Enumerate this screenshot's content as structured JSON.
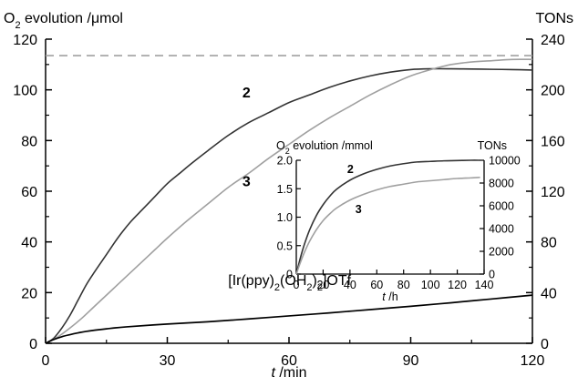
{
  "chart_data": [
    {
      "type": "line",
      "title": "",
      "ylabel": {
        "prefix": "O",
        "sub": "2",
        "suffix": " evolution /μmol"
      },
      "y2label": "TONs",
      "xlabel": {
        "var": "t",
        "unit": " /min"
      },
      "xlim": [
        0,
        120
      ],
      "ylim": [
        0,
        120
      ],
      "y2lim": [
        0,
        240
      ],
      "xticks": [
        0,
        30,
        60,
        90,
        120
      ],
      "yticks": [
        0,
        20,
        40,
        60,
        80,
        100,
        120
      ],
      "y2ticks": [
        0,
        40,
        80,
        120,
        160,
        200,
        240
      ],
      "reference_line": {
        "y": 113.5,
        "style": "dashed",
        "color": "#a0a0a0"
      },
      "series": [
        {
          "name": "2",
          "color": "#333333",
          "label_color": "#000000",
          "label_at": {
            "x": 48.5,
            "y": 97
          },
          "x": [
            0,
            2,
            4,
            6,
            8,
            10,
            12,
            15,
            18,
            21,
            24,
            27,
            30,
            33,
            36,
            40,
            45,
            50,
            55,
            60,
            65,
            70,
            75,
            80,
            85,
            90,
            95,
            100,
            105,
            110,
            115,
            120
          ],
          "y": [
            0,
            2,
            6,
            11,
            17,
            23,
            28,
            35,
            42,
            48,
            53,
            58,
            63,
            67,
            71,
            76,
            82,
            87,
            91,
            95,
            98,
            101,
            103.5,
            105.5,
            107,
            108,
            108.3,
            108.3,
            108.2,
            108.1,
            108,
            107.8
          ]
        },
        {
          "name": "3",
          "color": "#a0a0a0",
          "label_color": "#a0a0a0",
          "label_at": {
            "x": 48.5,
            "y": 62
          },
          "x": [
            0,
            3,
            6,
            9,
            12,
            15,
            18,
            21,
            24,
            27,
            30,
            35,
            40,
            45,
            50,
            55,
            60,
            65,
            70,
            75,
            80,
            85,
            90,
            95,
            100,
            105,
            110,
            115,
            120
          ],
          "y": [
            0,
            2.5,
            6,
            10,
            14.5,
            19,
            23.5,
            28,
            32.5,
            37,
            41.5,
            48.5,
            55,
            61.5,
            67,
            73,
            78.5,
            84,
            89,
            93.5,
            98,
            102,
            105.5,
            108,
            110,
            111,
            111.5,
            112,
            112
          ]
        },
        {
          "name": "[Ir(ppy)2(OH2)2]OTf",
          "display_name": [
            {
              "t": "[Ir(ppy)"
            },
            {
              "t": "2",
              "sub": true
            },
            {
              "t": "(OH"
            },
            {
              "t": "2",
              "sub": true
            },
            {
              "t": ")"
            },
            {
              "t": "2",
              "sub": true
            },
            {
              "t": "]OTf"
            }
          ],
          "color": "#000000",
          "label_color": "#000000",
          "label_at": {
            "x": 45,
            "y": 23
          },
          "x": [
            0,
            2,
            4,
            6,
            8,
            10,
            15,
            20,
            30,
            40,
            50,
            60,
            70,
            80,
            90,
            100,
            110,
            120
          ],
          "y": [
            0,
            1.5,
            2.6,
            3.4,
            4.1,
            4.7,
            5.7,
            6.5,
            7.6,
            8.5,
            9.6,
            10.8,
            12,
            13.3,
            14.6,
            16,
            17.5,
            19
          ]
        }
      ]
    },
    {
      "type": "line",
      "title": "",
      "ylabel": {
        "prefix": "O",
        "sub": "2",
        "suffix": " evolution /mmol"
      },
      "y2label": "TONs",
      "xlabel": {
        "var": "t",
        "unit": " /h"
      },
      "xlim": [
        0,
        140
      ],
      "ylim": [
        0,
        2.0
      ],
      "y2lim": [
        0,
        10000
      ],
      "xticks": [
        0,
        20,
        40,
        60,
        80,
        100,
        120,
        140
      ],
      "xtick_labels": [
        "0",
        "20",
        "40",
        "60",
        "80",
        "100",
        "120",
        "140"
      ],
      "yticks": [
        0,
        0.5,
        1.0,
        1.5,
        2.0
      ],
      "ytick_labels": [
        "0",
        "0.5",
        "1.0",
        "1.5",
        "2.0"
      ],
      "y2ticks": [
        0,
        2000,
        4000,
        6000,
        8000,
        10000
      ],
      "y2tick_labels": [
        "0",
        "2000",
        "4000",
        "6000",
        "8000",
        "10000"
      ],
      "series": [
        {
          "name": "2",
          "color": "#333333",
          "label_color": "#000000",
          "label_at": {
            "x": 38,
            "y": 1.78
          },
          "x": [
            0,
            3,
            6,
            10,
            15,
            20,
            25,
            30,
            40,
            50,
            60,
            70,
            80,
            90,
            100,
            110,
            120,
            130,
            137
          ],
          "y": [
            0,
            0.28,
            0.52,
            0.78,
            1.03,
            1.22,
            1.37,
            1.49,
            1.65,
            1.76,
            1.84,
            1.9,
            1.94,
            1.97,
            1.98,
            1.99,
            1.995,
            2.0,
            2.0
          ]
        },
        {
          "name": "3",
          "color": "#a0a0a0",
          "label_color": "#a0a0a0",
          "label_at": {
            "x": 44,
            "y": 1.07
          },
          "x": [
            0,
            3,
            6,
            10,
            15,
            20,
            25,
            30,
            40,
            50,
            60,
            70,
            80,
            90,
            100,
            110,
            120,
            130,
            137
          ],
          "y": [
            0,
            0.2,
            0.38,
            0.58,
            0.78,
            0.94,
            1.06,
            1.16,
            1.3,
            1.4,
            1.48,
            1.54,
            1.58,
            1.62,
            1.64,
            1.66,
            1.68,
            1.69,
            1.7
          ]
        }
      ]
    }
  ]
}
